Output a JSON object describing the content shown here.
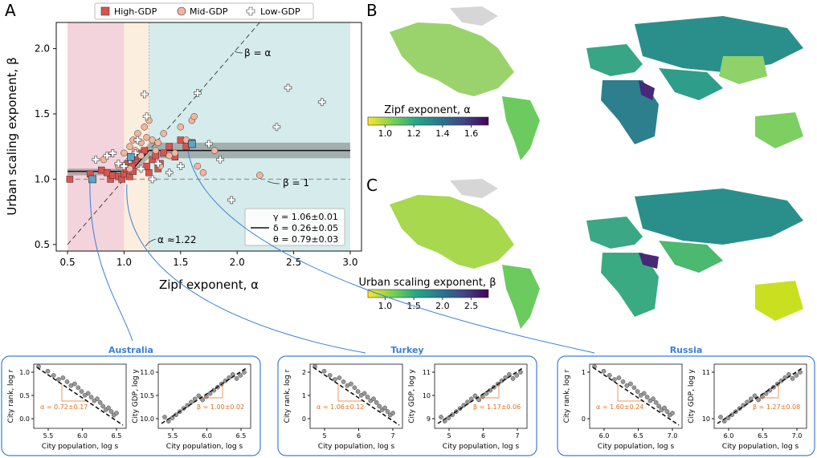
{
  "panels": {
    "A": "A",
    "B": "B",
    "C": "C"
  },
  "chart_data": [
    {
      "type": "scatter",
      "panel": "A",
      "xlabel": "Zipf exponent, α",
      "ylabel": "Urban scaling exponent, β",
      "xlim": [
        0.4,
        3.1
      ],
      "ylim": [
        0.45,
        2.2
      ],
      "xticks": [
        "0.5",
        "1.0",
        "1.5",
        "2.0",
        "2.5",
        "3.0"
      ],
      "yticks": [
        "0.5",
        "1.0",
        "1.5",
        "2.0"
      ],
      "regions": [
        {
          "x0": 0.5,
          "x1": 1.0,
          "color": "#f3d3dc"
        },
        {
          "x0": 1.0,
          "x1": 1.22,
          "color": "#fbeede"
        },
        {
          "x0": 1.22,
          "x1": 3.0,
          "color": "#d6ecec"
        }
      ],
      "legend": {
        "position": "top",
        "entries": [
          "High-GDP",
          "Mid-GDP",
          "Low-GDP"
        ]
      },
      "colors": {
        "high": "#d9534f",
        "mid": "#f2b5a0",
        "low": "#ffffff",
        "highlight": "#5aa5c8"
      },
      "series": [
        {
          "name": "High-GDP",
          "marker": "square",
          "points": [
            [
              0.52,
              1.0
            ],
            [
              0.7,
              1.04
            ],
            [
              0.8,
              1.07
            ],
            [
              0.85,
              1.05
            ],
            [
              0.88,
              1.0
            ],
            [
              0.9,
              1.03
            ],
            [
              0.95,
              1.02
            ],
            [
              0.98,
              1.0
            ],
            [
              1.0,
              1.04
            ],
            [
              1.02,
              1.08
            ],
            [
              1.03,
              1.12
            ],
            [
              1.05,
              1.02
            ],
            [
              1.07,
              1.1
            ],
            [
              1.08,
              1.06
            ],
            [
              1.1,
              1.15
            ],
            [
              1.12,
              1.18
            ],
            [
              1.15,
              1.2
            ],
            [
              1.2,
              1.1
            ],
            [
              1.25,
              1.15
            ],
            [
              1.3,
              1.08
            ],
            [
              1.32,
              1.12
            ],
            [
              1.35,
              1.2
            ],
            [
              1.4,
              1.25
            ],
            [
              1.45,
              1.17
            ],
            [
              1.5,
              1.3
            ],
            [
              1.55,
              1.25
            ],
            [
              1.6,
              1.28
            ],
            [
              1.18,
              1.22
            ],
            [
              1.22,
              1.05
            ],
            [
              1.28,
              1.18
            ]
          ]
        },
        {
          "name": "Mid-GDP",
          "marker": "circle",
          "points": [
            [
              0.82,
              1.15
            ],
            [
              0.95,
              1.1
            ],
            [
              1.0,
              1.2
            ],
            [
              1.05,
              1.25
            ],
            [
              1.08,
              1.3
            ],
            [
              1.1,
              1.22
            ],
            [
              1.12,
              1.35
            ],
            [
              1.15,
              1.28
            ],
            [
              1.18,
              1.4
            ],
            [
              1.2,
              1.32
            ],
            [
              1.22,
              1.45
            ],
            [
              1.25,
              1.3
            ],
            [
              1.28,
              1.22
            ],
            [
              1.3,
              1.28
            ],
            [
              1.35,
              1.35
            ],
            [
              1.4,
              1.18
            ],
            [
              1.45,
              1.2
            ],
            [
              1.5,
              1.4
            ],
            [
              1.55,
              1.3
            ],
            [
              1.6,
              1.45
            ],
            [
              1.62,
              1.48
            ],
            [
              1.65,
              1.1
            ],
            [
              1.7,
              1.05
            ],
            [
              1.8,
              1.22
            ],
            [
              2.2,
              1.03
            ],
            [
              1.15,
              1.18
            ],
            [
              1.05,
              1.08
            ],
            [
              1.32,
              1.1
            ]
          ]
        },
        {
          "name": "Low-GDP",
          "marker": "plus",
          "points": [
            [
              0.75,
              1.15
            ],
            [
              0.85,
              1.18
            ],
            [
              0.9,
              1.2
            ],
            [
              0.95,
              1.12
            ],
            [
              1.0,
              1.1
            ],
            [
              1.05,
              1.15
            ],
            [
              1.1,
              1.2
            ],
            [
              1.15,
              1.08
            ],
            [
              1.18,
              1.65
            ],
            [
              1.2,
              1.48
            ],
            [
              1.25,
              1.0
            ],
            [
              1.3,
              1.12
            ],
            [
              1.4,
              1.05
            ],
            [
              1.5,
              1.1
            ],
            [
              1.65,
              1.66
            ],
            [
              1.75,
              1.27
            ],
            [
              1.85,
              1.15
            ],
            [
              1.95,
              0.84
            ],
            [
              2.35,
              1.4
            ],
            [
              2.45,
              1.7
            ],
            [
              2.75,
              1.59
            ],
            [
              1.12,
              1.3
            ]
          ]
        },
        {
          "name": "",
          "marker": "square",
          "highlight": true,
          "points": [
            [
              0.72,
              1.0
            ],
            [
              1.06,
              1.17
            ],
            [
              1.6,
              1.27
            ]
          ]
        }
      ],
      "lines": [
        {
          "label": "β = α",
          "x": [
            0.5,
            2.2
          ],
          "y": [
            0.5,
            2.2
          ],
          "style": "dashed"
        },
        {
          "label": "β = 1",
          "x": [
            0.5,
            3.0
          ],
          "y": [
            1.0,
            1.0
          ],
          "style": "dashed-gray"
        },
        {
          "label": "fit",
          "x": [
            0.5,
            1.06,
            1.22,
            3.0
          ],
          "y": [
            1.06,
            1.06,
            1.22,
            1.22
          ],
          "style": "solid"
        }
      ],
      "annotations": {
        "beta_eq_alpha": "β = α",
        "beta_eq_one": "β = 1",
        "alpha_break": "α ≈1.22"
      },
      "fit_box": {
        "gamma": "γ = 1.06±0.01",
        "delta": "δ = 0.26±0.05",
        "theta": "θ = 0.79±0.03"
      }
    },
    {
      "type": "heatmap",
      "panel": "B",
      "colorbar_label": "Zipf exponent, α",
      "ticks": [
        "1.0",
        "1.2",
        "1.4",
        "1.6"
      ]
    },
    {
      "type": "heatmap",
      "panel": "C",
      "colorbar_label": "Urban scaling exponent, β",
      "ticks": [
        "1.0",
        "1.5",
        "2.0",
        "2.5"
      ]
    },
    {
      "type": "scatter",
      "inset": "Australia",
      "title": "Australia",
      "left": {
        "xlabel": "City population, log s",
        "ylabel": "City rank, log r",
        "xticks": [
          "5.5",
          "6.0",
          "6.5"
        ],
        "yticks": [
          "0.0",
          "0.5",
          "1.0"
        ],
        "annotation": "α = 0.72±0.17"
      },
      "right": {
        "xlabel": "City population, log s",
        "ylabel": "City GDP, log y",
        "xticks": [
          "5.5",
          "6.0",
          "6.5"
        ],
        "yticks": [
          "10.0",
          "10.5",
          "11.0"
        ],
        "annotation": "β = 1.00±0.02"
      }
    },
    {
      "type": "scatter",
      "inset": "Turkey",
      "title": "Turkey",
      "left": {
        "xlabel": "City population, log s",
        "ylabel": "City rank, log r",
        "xticks": [
          "5",
          "6",
          "7"
        ],
        "yticks": [
          "0",
          "1",
          "2"
        ],
        "annotation": "α = 1.06±0.12"
      },
      "right": {
        "xlabel": "City population, log s",
        "ylabel": "City GDP, log y",
        "xticks": [
          "5",
          "6",
          "7"
        ],
        "yticks": [
          "9",
          "10",
          "11"
        ],
        "annotation": "β = 1.17±0.06"
      }
    },
    {
      "type": "scatter",
      "inset": "Russia",
      "title": "Russia",
      "left": {
        "xlabel": "City population, log s",
        "ylabel": "City rank, log r",
        "xticks": [
          "6.0",
          "6.5",
          "7.0"
        ],
        "yticks": [
          "0",
          "1"
        ],
        "annotation": "α = 1.60±0.24"
      },
      "right": {
        "xlabel": "City population, log s",
        "ylabel": "City GDP, log y",
        "xticks": [
          "6.0",
          "6.5",
          "7.0"
        ],
        "yticks": [
          "10",
          "11"
        ],
        "annotation": "β = 1.27±0.08"
      }
    }
  ]
}
